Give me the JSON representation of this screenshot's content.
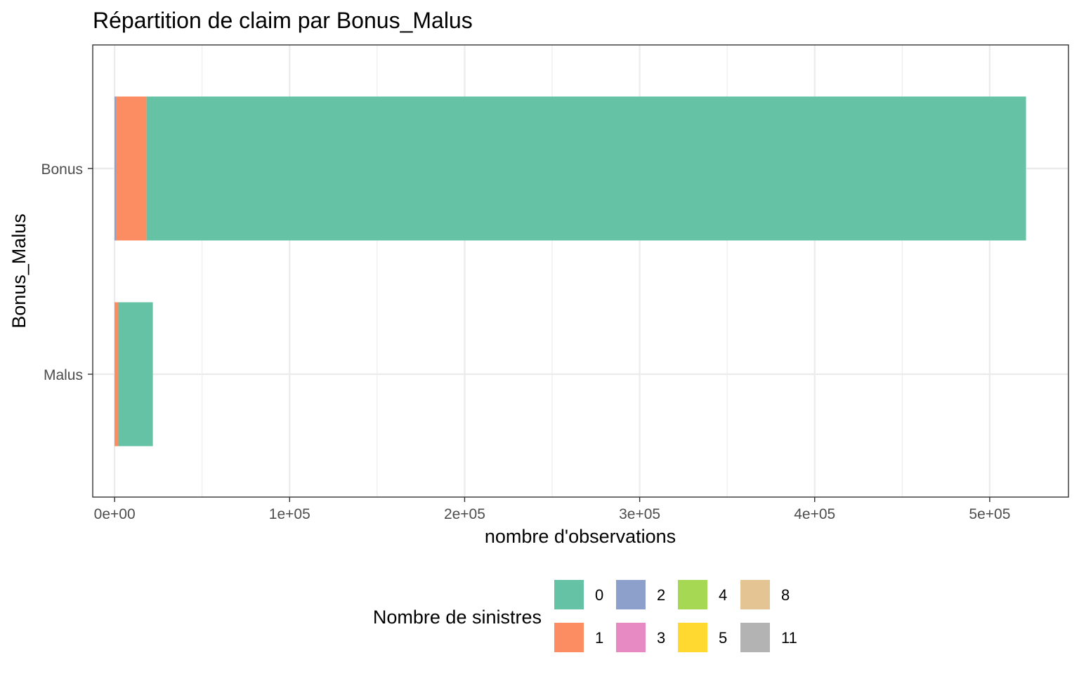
{
  "chart_data": {
    "type": "bar",
    "orientation": "horizontal",
    "stacked": true,
    "title": "Répartition de claim par Bonus_Malus",
    "xlabel": "nombre d'observations",
    "ylabel": "Bonus_Malus",
    "categories": [
      "Bonus",
      "Malus"
    ],
    "xlim": [
      -12500,
      545000
    ],
    "x_ticks": [
      0,
      100000,
      200000,
      300000,
      400000,
      500000
    ],
    "x_tick_labels": [
      "0e+00",
      "1e+05",
      "2e+05",
      "3e+05",
      "4e+05",
      "5e+05"
    ],
    "grid": true,
    "legend_title": "Nombre de sinistres",
    "legend_position": "bottom",
    "series": [
      {
        "name": "0",
        "color": "#66C2A5",
        "values": [
          502500,
          19700
        ]
      },
      {
        "name": "1",
        "color": "#FC8D62",
        "values": [
          17500,
          2000
        ]
      },
      {
        "name": "2",
        "color": "#8DA0CB",
        "values": [
          700,
          150
        ]
      },
      {
        "name": "3",
        "color": "#E78AC3",
        "values": [
          40,
          10
        ]
      },
      {
        "name": "4",
        "color": "#A6D854",
        "values": [
          5,
          1
        ]
      },
      {
        "name": "5",
        "color": "#FFD92F",
        "values": [
          2,
          0
        ]
      },
      {
        "name": "8",
        "color": "#E5C494",
        "values": [
          1,
          0
        ]
      },
      {
        "name": "11",
        "color": "#B3B3B3",
        "values": [
          1,
          0
        ]
      }
    ]
  }
}
